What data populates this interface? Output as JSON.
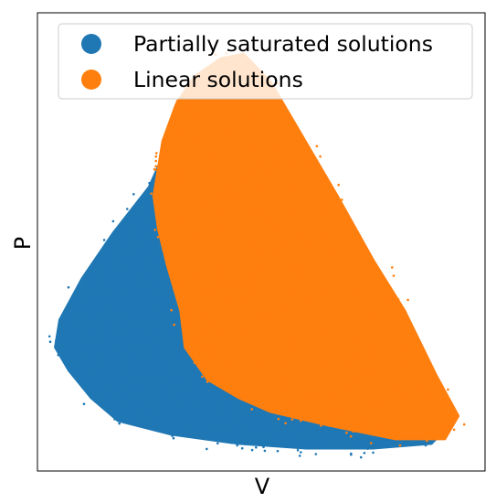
{
  "chart_data": {
    "type": "scatter",
    "title": "",
    "xlabel": "V",
    "ylabel": "P",
    "xticks": [],
    "yticks": [],
    "grid": false,
    "legend_position": "top",
    "series": [
      {
        "name": "Partially saturated solutions",
        "color": "#1f77b4",
        "region": [
          [
            0.04,
            0.27
          ],
          [
            0.07,
            0.22
          ],
          [
            0.12,
            0.16
          ],
          [
            0.18,
            0.11
          ],
          [
            0.3,
            0.08
          ],
          [
            0.45,
            0.06
          ],
          [
            0.6,
            0.05
          ],
          [
            0.75,
            0.05
          ],
          [
            0.88,
            0.06
          ],
          [
            0.91,
            0.09
          ],
          [
            0.8,
            0.15
          ],
          [
            0.65,
            0.2
          ],
          [
            0.55,
            0.3
          ],
          [
            0.48,
            0.42
          ],
          [
            0.42,
            0.58
          ],
          [
            0.36,
            0.75
          ],
          [
            0.3,
            0.73
          ],
          [
            0.25,
            0.62
          ],
          [
            0.17,
            0.52
          ],
          [
            0.1,
            0.42
          ],
          [
            0.05,
            0.33
          ]
        ]
      },
      {
        "name": "Linear solutions",
        "color": "#ff7f0e",
        "region": [
          [
            0.26,
            0.6
          ],
          [
            0.28,
            0.72
          ],
          [
            0.31,
            0.8
          ],
          [
            0.35,
            0.86
          ],
          [
            0.41,
            0.9
          ],
          [
            0.46,
            0.91
          ],
          [
            0.52,
            0.85
          ],
          [
            0.58,
            0.75
          ],
          [
            0.67,
            0.6
          ],
          [
            0.75,
            0.46
          ],
          [
            0.82,
            0.35
          ],
          [
            0.89,
            0.21
          ],
          [
            0.94,
            0.12
          ],
          [
            0.91,
            0.07
          ],
          [
            0.8,
            0.07
          ],
          [
            0.65,
            0.1
          ],
          [
            0.52,
            0.13
          ],
          [
            0.45,
            0.16
          ],
          [
            0.38,
            0.2
          ],
          [
            0.33,
            0.27
          ],
          [
            0.32,
            0.35
          ],
          [
            0.29,
            0.45
          ],
          [
            0.27,
            0.53
          ]
        ]
      }
    ]
  }
}
